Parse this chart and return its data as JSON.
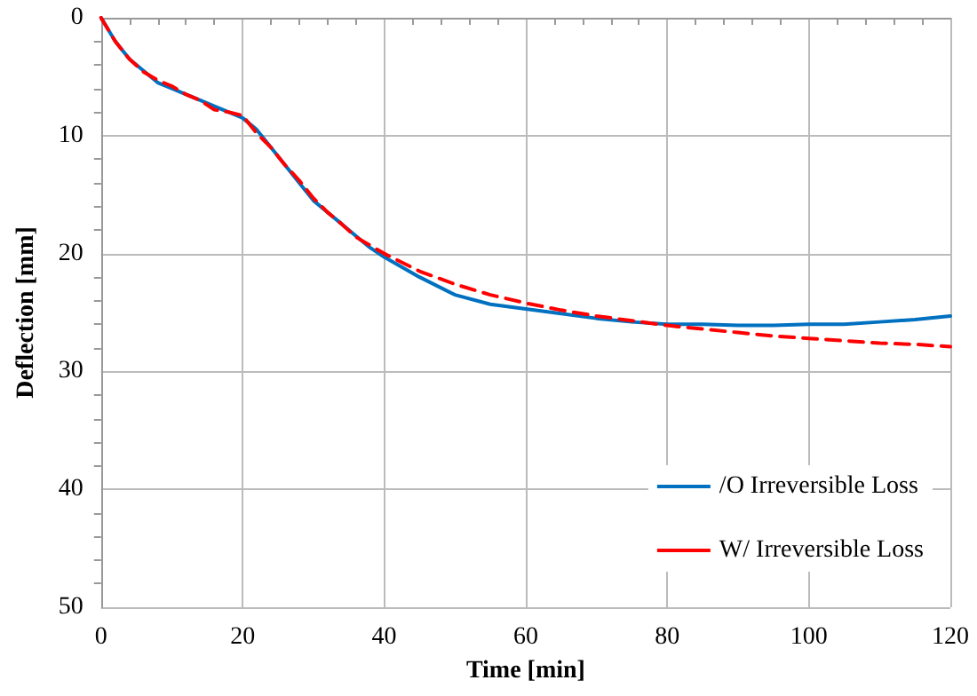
{
  "chart_data": {
    "type": "line",
    "xlabel": "Time [min]",
    "ylabel": "Deflection [mm]",
    "xlim": [
      0,
      120
    ],
    "xticks": [
      0,
      20,
      40,
      60,
      80,
      100,
      120
    ],
    "ylim": [
      50,
      0
    ],
    "yticks": [
      0,
      10,
      20,
      30,
      40,
      50
    ],
    "grid": true,
    "legend": "bottom right",
    "marker": "none",
    "series": [
      {
        "name": "/O Irreversible Loss",
        "color": "#0070c0",
        "line_style": "solid",
        "x": [
          0,
          2,
          4,
          6,
          8,
          10,
          12,
          14,
          16,
          18,
          20,
          22,
          24,
          26,
          28,
          30,
          32,
          34,
          36,
          38,
          40,
          45,
          50,
          55,
          60,
          65,
          70,
          75,
          80,
          85,
          90,
          95,
          100,
          105,
          110,
          115,
          120
        ],
        "values": [
          0,
          2,
          3.5,
          4.5,
          5.5,
          6,
          6.5,
          7,
          7.5,
          8,
          8.5,
          9.5,
          11,
          12.5,
          14,
          15.5,
          16.5,
          17.5,
          18.5,
          19.5,
          20.3,
          22,
          23.5,
          24.3,
          24.7,
          25.1,
          25.5,
          25.8,
          26,
          26,
          26.1,
          26.1,
          26,
          26,
          25.8,
          25.6,
          25.3
        ]
      },
      {
        "name": "W/ Irreversible Loss",
        "color": "#ff0000",
        "line_style": "dashed",
        "x": [
          0,
          2,
          4,
          6,
          8,
          10,
          12,
          14,
          16,
          18,
          20,
          22,
          24,
          26,
          28,
          30,
          32,
          34,
          36,
          38,
          40,
          45,
          50,
          55,
          60,
          65,
          70,
          75,
          80,
          85,
          90,
          95,
          100,
          105,
          110,
          115,
          120
        ],
        "values": [
          0,
          2,
          3.5,
          4.6,
          5.3,
          5.8,
          6.5,
          7,
          7.8,
          8,
          8.3,
          9.8,
          11,
          12.5,
          13.8,
          15.3,
          16.5,
          17.5,
          18.6,
          19.3,
          20,
          21.5,
          22.6,
          23.5,
          24.2,
          24.8,
          25.3,
          25.7,
          26.1,
          26.4,
          26.7,
          27,
          27.2,
          27.4,
          27.6,
          27.7,
          27.9
        ]
      }
    ]
  }
}
